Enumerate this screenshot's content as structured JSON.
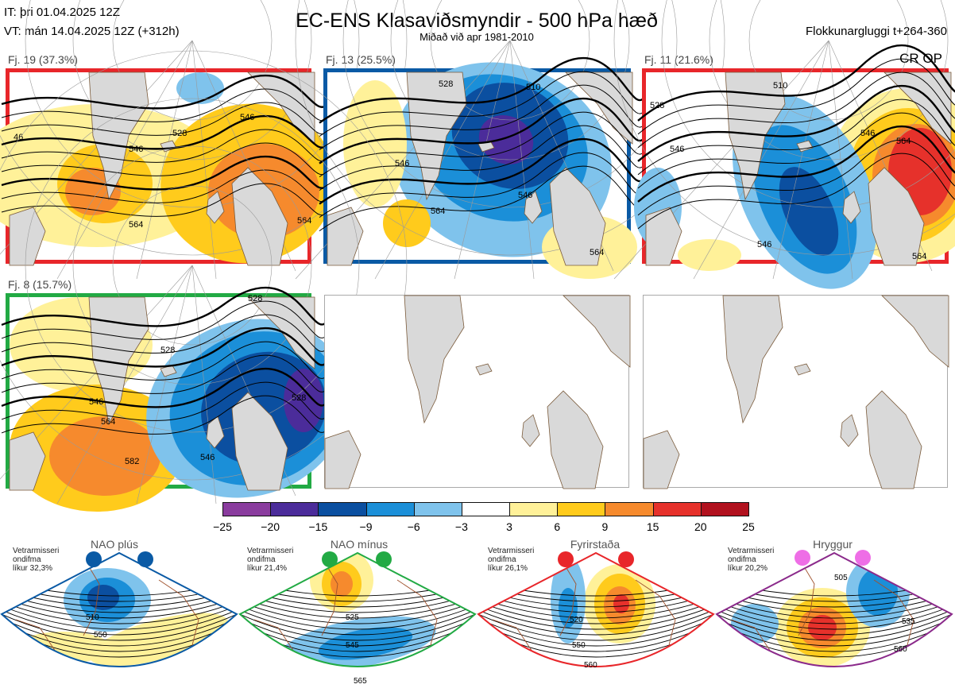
{
  "header": {
    "it": "IT: þri 01.04.2025 12Z",
    "vt": "VT: mán 14.04.2025 12Z  (+312h)",
    "title": "EC-ENS Klasaviðsmyndir - 500 hPa hæð",
    "subtitle": "Miðað við apr 1981-2010",
    "window": "Flokkunargluggi t+264-360",
    "crop": "CR OP"
  },
  "panels": [
    {
      "label": "Fj. 19 (37.3%)",
      "border": "#e8262a",
      "regime": "red",
      "contours": [
        "546",
        "528",
        "546",
        "564",
        "564",
        "46"
      ]
    },
    {
      "label": "Fj. 13 (25.5%)",
      "border": "#0a5aa5",
      "regime": "blue",
      "contours": [
        "528",
        "510",
        "546",
        "546",
        "564",
        "564"
      ]
    },
    {
      "label": "Fj. 11 (21.6%)",
      "border": "#e8262a",
      "regime": "red",
      "contours": [
        "510",
        "528",
        "546",
        "546",
        "564",
        "546",
        "564"
      ]
    },
    {
      "label": "Fj. 8 (15.7%)",
      "border": "#22aa44",
      "regime": "green",
      "contours": [
        "528",
        "528",
        "546",
        "564",
        "582",
        "546",
        "528"
      ]
    },
    {
      "label": "",
      "border": "",
      "regime": "empty",
      "contours": []
    },
    {
      "label": "",
      "border": "",
      "regime": "empty",
      "contours": []
    }
  ],
  "colorbar": {
    "ticks": [
      "−25",
      "−20",
      "−15",
      "−9",
      "−6",
      "−3",
      "3",
      "6",
      "9",
      "15",
      "20",
      "25"
    ],
    "colors": [
      "#8a3c9e",
      "#4b2c9a",
      "#0b4fa0",
      "#1b8fd8",
      "#7fc3ec",
      "#ffffff",
      "#fff199",
      "#ffcb1c",
      "#f68a2d",
      "#e6312b",
      "#b1111e"
    ]
  },
  "regimes": [
    {
      "name": "NAO plús",
      "note": [
        "Vetrarmisseri",
        "ondifma",
        "líkur 32,3%"
      ],
      "dot_color": "#0a5aa5",
      "outline": "#0a5aa5",
      "contours": [
        "510",
        "550"
      ]
    },
    {
      "name": "NAO mínus",
      "note": [
        "Vetrarmisseri",
        "ondifma",
        "líkur 21,4%"
      ],
      "dot_color": "#22aa44",
      "outline": "#22aa44",
      "contours": [
        "525",
        "545",
        "565"
      ]
    },
    {
      "name": "Fyrirstaða",
      "note": [
        "Vetrarmisseri",
        "ondifma",
        "líkur 26,1%"
      ],
      "dot_color": "#e8262a",
      "outline": "#e8262a",
      "contours": [
        "520",
        "550",
        "560"
      ]
    },
    {
      "name": "Hryggur",
      "note": [
        "Vetrarmisseri",
        "ondifma",
        "líkur 20,2%"
      ],
      "dot_color": "#ee6ee6",
      "outline": "#8b2a8b",
      "contours": [
        "505",
        "535",
        "560"
      ]
    }
  ]
}
